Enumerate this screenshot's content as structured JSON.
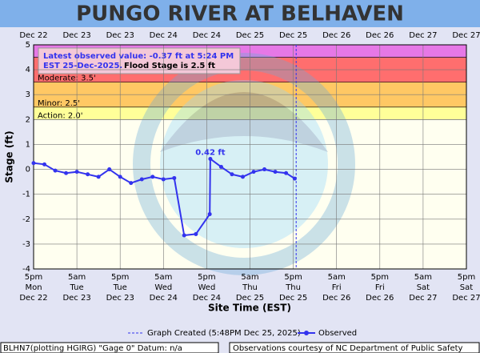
{
  "chart_data": {
    "type": "line",
    "title": "PUNGO RIVER AT BELHAVEN",
    "ylabel": "Stage (ft)",
    "xlabel": "Site Time (EST)",
    "ylim": [
      -4,
      5
    ],
    "yticks": [
      -4,
      -3,
      -2,
      -1,
      0,
      1,
      2,
      3,
      4,
      5
    ],
    "xlim": [
      "2025-12-22T17:00",
      "2025-12-27T17:00"
    ],
    "xticks": [
      {
        "value": "2025-12-22T17:00",
        "label": [
          "5pm",
          "Mon",
          "Dec 22"
        ]
      },
      {
        "value": "2025-12-23T05:00",
        "label": [
          "5am",
          "Tue",
          "Dec 23"
        ]
      },
      {
        "value": "2025-12-23T17:00",
        "label": [
          "5pm",
          "Tue",
          "Dec 23"
        ]
      },
      {
        "value": "2025-12-24T05:00",
        "label": [
          "5am",
          "Wed",
          "Dec 24"
        ]
      },
      {
        "value": "2025-12-24T17:00",
        "label": [
          "5pm",
          "Wed",
          "Dec 24"
        ]
      },
      {
        "value": "2025-12-25T05:00",
        "label": [
          "5am",
          "Thu",
          "Dec 25"
        ]
      },
      {
        "value": "2025-12-25T17:00",
        "label": [
          "5pm",
          "Thu",
          "Dec 25"
        ]
      },
      {
        "value": "2025-12-26T05:00",
        "label": [
          "5am",
          "Fri",
          "Dec 26"
        ]
      },
      {
        "value": "2025-12-26T17:00",
        "label": [
          "5pm",
          "Fri",
          "Dec 26"
        ]
      },
      {
        "value": "2025-12-27T05:00",
        "label": [
          "5am",
          "Sat",
          "Dec 27"
        ]
      },
      {
        "value": "2025-12-27T17:00",
        "label": [
          "5pm",
          "Sat",
          "Dec 27"
        ]
      }
    ],
    "top_labels": [
      "Dec 22",
      "Dec 23",
      "Dec 23",
      "Dec 24",
      "Dec 24",
      "Dec 25",
      "Dec 25",
      "Dec 26",
      "Dec 26",
      "Dec 27",
      "Dec 27"
    ],
    "grid": true,
    "flood_categories": [
      {
        "value": 2.0,
        "label": "Action: 2.0'",
        "color": "#ffff99"
      },
      {
        "value": 2.5,
        "label": "Minor: 2.5'",
        "color": "#ffc864"
      },
      {
        "value": 3.5,
        "label": "Moderate: 3.5'",
        "color": "#ff6e6e"
      },
      {
        "value": 4.5,
        "color": "#e678e6"
      }
    ],
    "latest_lines": [
      "Latest observed value: -0.37 ft at 5:24 PM",
      "EST 25-Dec-2025."
    ],
    "flood_stage_note": "Flood Stage is 2.5 ft",
    "peak_label": {
      "text": "0.42 ft",
      "value": 0.42
    },
    "created": {
      "x": "2025-12-25T17:48",
      "label": "Graph Created (5:48PM Dec 25, 2025)"
    },
    "series": [
      {
        "name": "Observed",
        "color": "#3333ee",
        "x": [
          "2025-12-22T17:00",
          "2025-12-22T20:00",
          "2025-12-22T23:00",
          "2025-12-23T02:00",
          "2025-12-23T05:00",
          "2025-12-23T08:00",
          "2025-12-23T11:00",
          "2025-12-23T14:00",
          "2025-12-23T17:00",
          "2025-12-23T20:00",
          "2025-12-23T23:00",
          "2025-12-24T02:00",
          "2025-12-24T05:00",
          "2025-12-24T08:00",
          "2025-12-24T10:45",
          "2025-12-24T14:00",
          "2025-12-24T17:50",
          "2025-12-24T18:00",
          "2025-12-24T21:00",
          "2025-12-25T00:00",
          "2025-12-25T03:00",
          "2025-12-25T06:00",
          "2025-12-25T09:00",
          "2025-12-25T12:00",
          "2025-12-25T15:00",
          "2025-12-25T17:24"
        ],
        "values": [
          0.25,
          0.2,
          -0.05,
          -0.15,
          -0.1,
          -0.2,
          -0.3,
          0.0,
          -0.3,
          -0.55,
          -0.4,
          -0.3,
          -0.4,
          -0.35,
          -2.65,
          -2.6,
          -1.8,
          0.42,
          0.1,
          -0.2,
          -0.3,
          -0.1,
          0.0,
          -0.1,
          -0.15,
          -0.37
        ]
      }
    ],
    "footer_left": "BLHN7(plotting HGIRG) \"Gage 0\" Datum: n/a",
    "footer_right": "Observations courtesy of NC Department of Public Safety"
  }
}
